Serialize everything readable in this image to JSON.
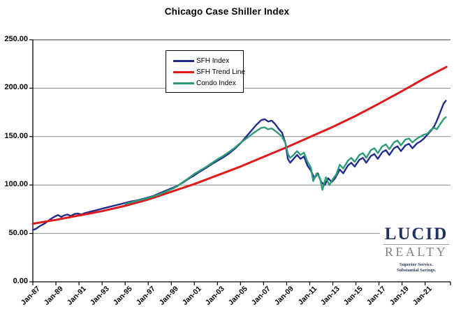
{
  "title": "Chicago Case Shiller Index",
  "legend": {
    "items": [
      {
        "label": "SFH Index",
        "color": "#202C8C"
      },
      {
        "label": "SFH Trend Line",
        "color": "#E01A1A"
      },
      {
        "label": "Condo Index",
        "color": "#2E9B78"
      }
    ]
  },
  "logo": {
    "name_top": "LUCID",
    "name_bottom": "REALTY",
    "tagline_line1": "Superior Service.",
    "tagline_line2": "Substantial Savings."
  },
  "chart_data": {
    "type": "line",
    "title": "Chicago Case Shiller Index",
    "xlabel": "",
    "ylabel": "",
    "x_range": [
      1987,
      2023.2
    ],
    "y_range": [
      0,
      250
    ],
    "grid": "horizontal only, gray, every 50 units",
    "legend_position": "inside top-left",
    "y_ticks": [
      {
        "value": 0,
        "label": "0.00"
      },
      {
        "value": 50,
        "label": "50.00"
      },
      {
        "value": 100,
        "label": "100.00"
      },
      {
        "value": 150,
        "label": "150.00"
      },
      {
        "value": 200,
        "label": "200.00"
      },
      {
        "value": 250,
        "label": "250.00"
      }
    ],
    "x_ticks": [
      {
        "year": 1987,
        "label": "Jan-87"
      },
      {
        "year": 1989,
        "label": "Jan-89"
      },
      {
        "year": 1991,
        "label": "Jan-91"
      },
      {
        "year": 1993,
        "label": "Jan-93"
      },
      {
        "year": 1995,
        "label": "Jan-95"
      },
      {
        "year": 1997,
        "label": "Jan-97"
      },
      {
        "year": 1999,
        "label": "Jan-99"
      },
      {
        "year": 2001,
        "label": "Jan-01"
      },
      {
        "year": 2003,
        "label": "Jan-03"
      },
      {
        "year": 2005,
        "label": "Jan-05"
      },
      {
        "year": 2007,
        "label": "Jan-07"
      },
      {
        "year": 2009,
        "label": "Jan-09"
      },
      {
        "year": 2011,
        "label": "Jan-11"
      },
      {
        "year": 2013,
        "label": "Jan-13"
      },
      {
        "year": 2015,
        "label": "Jan-15"
      },
      {
        "year": 2017,
        "label": "Jan-17"
      },
      {
        "year": 2019,
        "label": "Jan-19"
      },
      {
        "year": 2021,
        "label": "Jan-21"
      }
    ],
    "series": [
      {
        "name": "SFH Index",
        "color": "#202C8C",
        "width": 2.4,
        "points": [
          [
            1987.0,
            53.5
          ],
          [
            1987.3,
            55
          ],
          [
            1987.6,
            57.5
          ],
          [
            1988.0,
            60
          ],
          [
            1988.4,
            63.5
          ],
          [
            1988.7,
            66
          ],
          [
            1989.0,
            68
          ],
          [
            1989.2,
            69
          ],
          [
            1989.45,
            67
          ],
          [
            1989.7,
            68.5
          ],
          [
            1990.0,
            69.5
          ],
          [
            1990.3,
            68
          ],
          [
            1990.6,
            70
          ],
          [
            1990.9,
            70.5
          ],
          [
            1991.2,
            69.5
          ],
          [
            1991.5,
            71
          ],
          [
            1992.0,
            72.5
          ],
          [
            1992.5,
            74
          ],
          [
            1993.0,
            75.5
          ],
          [
            1993.5,
            77
          ],
          [
            1994.0,
            78.5
          ],
          [
            1994.5,
            80
          ],
          [
            1995.0,
            81.5
          ],
          [
            1995.5,
            83
          ],
          [
            1996.0,
            84
          ],
          [
            1996.5,
            85.5
          ],
          [
            1997.0,
            87
          ],
          [
            1997.5,
            89
          ],
          [
            1998.0,
            91.5
          ],
          [
            1998.5,
            94
          ],
          [
            1999.0,
            96.5
          ],
          [
            1999.5,
            99
          ],
          [
            2000.0,
            102.5
          ],
          [
            2000.5,
            106.5
          ],
          [
            2001.0,
            110
          ],
          [
            2001.5,
            114
          ],
          [
            2002.0,
            117.5
          ],
          [
            2002.5,
            121.5
          ],
          [
            2003.0,
            125
          ],
          [
            2003.5,
            128.5
          ],
          [
            2004.0,
            132.5
          ],
          [
            2004.5,
            137.5
          ],
          [
            2005.0,
            143
          ],
          [
            2005.5,
            150
          ],
          [
            2006.0,
            157
          ],
          [
            2006.4,
            162.5
          ],
          [
            2006.8,
            167
          ],
          [
            2007.1,
            168
          ],
          [
            2007.4,
            165.5
          ],
          [
            2007.7,
            166.5
          ],
          [
            2008.0,
            163
          ],
          [
            2008.3,
            158
          ],
          [
            2008.6,
            154
          ],
          [
            2008.9,
            143
          ],
          [
            2009.1,
            127
          ],
          [
            2009.3,
            123
          ],
          [
            2009.6,
            127
          ],
          [
            2009.9,
            131
          ],
          [
            2010.2,
            127
          ],
          [
            2010.5,
            129.5
          ],
          [
            2010.8,
            120
          ],
          [
            2011.1,
            115
          ],
          [
            2011.4,
            107
          ],
          [
            2011.7,
            112
          ],
          [
            2012.0,
            103
          ],
          [
            2012.3,
            100
          ],
          [
            2012.6,
            107
          ],
          [
            2012.9,
            103
          ],
          [
            2013.2,
            107
          ],
          [
            2013.6,
            116
          ],
          [
            2013.9,
            112
          ],
          [
            2014.3,
            120
          ],
          [
            2014.6,
            123
          ],
          [
            2014.9,
            119
          ],
          [
            2015.3,
            126
          ],
          [
            2015.6,
            128
          ],
          [
            2015.9,
            123
          ],
          [
            2016.3,
            130
          ],
          [
            2016.6,
            132
          ],
          [
            2016.9,
            127
          ],
          [
            2017.3,
            134
          ],
          [
            2017.6,
            136
          ],
          [
            2017.9,
            131
          ],
          [
            2018.3,
            138
          ],
          [
            2018.6,
            140
          ],
          [
            2018.9,
            135
          ],
          [
            2019.3,
            141
          ],
          [
            2019.6,
            142.5
          ],
          [
            2019.9,
            138
          ],
          [
            2020.3,
            143
          ],
          [
            2020.6,
            145
          ],
          [
            2020.9,
            148
          ],
          [
            2021.2,
            152
          ],
          [
            2021.5,
            156
          ],
          [
            2021.8,
            161
          ],
          [
            2022.0,
            166
          ],
          [
            2022.2,
            172
          ],
          [
            2022.4,
            178
          ],
          [
            2022.6,
            184
          ],
          [
            2022.8,
            187
          ]
        ]
      },
      {
        "name": "SFH Trend Line",
        "color": "#E01A1A",
        "width": 3,
        "points": [
          [
            1987,
            60
          ],
          [
            1989,
            64
          ],
          [
            1991,
            68.5
          ],
          [
            1993,
            73
          ],
          [
            1995,
            78.5
          ],
          [
            1997,
            85
          ],
          [
            1999,
            93
          ],
          [
            2001,
            101
          ],
          [
            2003,
            110
          ],
          [
            2005,
            119
          ],
          [
            2007,
            129
          ],
          [
            2009,
            139
          ],
          [
            2011,
            149.5
          ],
          [
            2013,
            160
          ],
          [
            2015,
            171.5
          ],
          [
            2017,
            184
          ],
          [
            2019,
            197
          ],
          [
            2021,
            210.5
          ],
          [
            2022.85,
            222
          ]
        ]
      },
      {
        "name": "Condo Index",
        "color": "#2E9B78",
        "width": 2.4,
        "points": [
          [
            1995.0,
            80.5
          ],
          [
            1995.5,
            82
          ],
          [
            1996.0,
            83.5
          ],
          [
            1996.5,
            85
          ],
          [
            1997.0,
            86.5
          ],
          [
            1997.5,
            88.5
          ],
          [
            1998.0,
            90.5
          ],
          [
            1998.5,
            93
          ],
          [
            1999.0,
            95.5
          ],
          [
            1999.5,
            98.5
          ],
          [
            2000.0,
            103
          ],
          [
            2000.5,
            107
          ],
          [
            2001.0,
            111.5
          ],
          [
            2001.5,
            115
          ],
          [
            2002.0,
            118.5
          ],
          [
            2002.5,
            122.5
          ],
          [
            2003.0,
            126.5
          ],
          [
            2003.5,
            130
          ],
          [
            2004.0,
            134
          ],
          [
            2004.5,
            138.5
          ],
          [
            2005.0,
            143.5
          ],
          [
            2005.5,
            148
          ],
          [
            2006.0,
            152.5
          ],
          [
            2006.4,
            156
          ],
          [
            2006.8,
            159
          ],
          [
            2007.1,
            159.5
          ],
          [
            2007.4,
            157.5
          ],
          [
            2007.7,
            158.5
          ],
          [
            2008.0,
            156
          ],
          [
            2008.3,
            153
          ],
          [
            2008.6,
            150
          ],
          [
            2008.9,
            143
          ],
          [
            2009.1,
            132
          ],
          [
            2009.3,
            128
          ],
          [
            2009.6,
            131
          ],
          [
            2009.9,
            135
          ],
          [
            2010.2,
            131
          ],
          [
            2010.5,
            133.5
          ],
          [
            2010.8,
            124
          ],
          [
            2011.1,
            118
          ],
          [
            2011.3,
            104
          ],
          [
            2011.6,
            112
          ],
          [
            2011.9,
            107
          ],
          [
            2012.1,
            95
          ],
          [
            2012.4,
            108
          ],
          [
            2012.7,
            100
          ],
          [
            2013.0,
            106
          ],
          [
            2013.3,
            111
          ],
          [
            2013.6,
            121
          ],
          [
            2013.9,
            117
          ],
          [
            2014.3,
            125
          ],
          [
            2014.6,
            128
          ],
          [
            2014.9,
            124
          ],
          [
            2015.3,
            131
          ],
          [
            2015.6,
            133
          ],
          [
            2015.9,
            128
          ],
          [
            2016.3,
            136
          ],
          [
            2016.6,
            138
          ],
          [
            2016.9,
            133
          ],
          [
            2017.3,
            140
          ],
          [
            2017.6,
            142
          ],
          [
            2017.9,
            137
          ],
          [
            2018.3,
            144
          ],
          [
            2018.6,
            146
          ],
          [
            2018.9,
            141
          ],
          [
            2019.3,
            147
          ],
          [
            2019.6,
            148
          ],
          [
            2019.9,
            144
          ],
          [
            2020.3,
            148
          ],
          [
            2020.6,
            150
          ],
          [
            2020.9,
            152
          ],
          [
            2021.2,
            153
          ],
          [
            2021.5,
            157
          ],
          [
            2021.8,
            159
          ],
          [
            2022.0,
            157.5
          ],
          [
            2022.2,
            161
          ],
          [
            2022.4,
            164.5
          ],
          [
            2022.6,
            168
          ],
          [
            2022.8,
            170
          ]
        ]
      }
    ]
  }
}
